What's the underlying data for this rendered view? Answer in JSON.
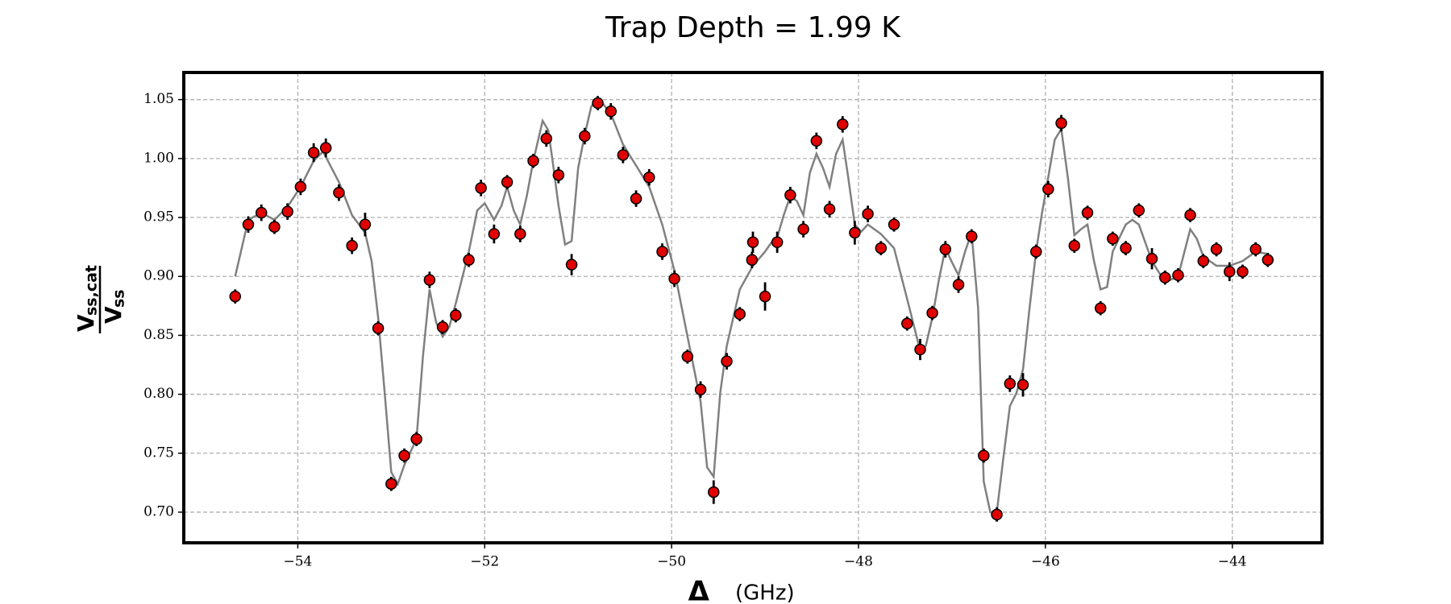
{
  "chart_data": {
    "type": "scatter",
    "title": "Trap Depth = 1.99 K",
    "xlabel": {
      "symbol": "Δ",
      "unit": "(GHz)"
    },
    "ylabel": {
      "numerator": {
        "base": "V",
        "sub": "ss,cat"
      },
      "denominator": {
        "base": "V",
        "sub": "ss"
      }
    },
    "xlim": [
      -55.22,
      -43.04
    ],
    "ylim": [
      0.674,
      1.073
    ],
    "xticks": [
      {
        "value": -54,
        "label": "−54"
      },
      {
        "value": -52,
        "label": "−52"
      },
      {
        "value": -50,
        "label": "−50"
      },
      {
        "value": -48,
        "label": "−48"
      },
      {
        "value": -46,
        "label": "−46"
      },
      {
        "value": -44,
        "label": "−44"
      }
    ],
    "yticks": [
      {
        "value": 0.7,
        "label": "0.70"
      },
      0.75,
      {
        "value": 0.8,
        "label": "0.80"
      },
      0.85,
      {
        "value": 0.9,
        "label": "0.90"
      },
      0.95,
      {
        "value": 1.0,
        "label": "1.00"
      },
      1.05
    ],
    "grid": true,
    "series": [
      {
        "type": "line",
        "color": "#808080",
        "x": [
          -54.67,
          -54.53,
          -54.39,
          -54.25,
          -54.11,
          -53.97,
          -53.83,
          -53.73,
          -53.56,
          -53.42,
          -53.28,
          -53.21,
          -53.14,
          -53.07,
          -53.0,
          -52.93,
          -52.86,
          -52.73,
          -52.66,
          -52.59,
          -52.52,
          -52.45,
          -52.38,
          -52.31,
          -52.17,
          -52.08,
          -52.0,
          -51.9,
          -51.82,
          -51.76,
          -51.69,
          -51.62,
          -51.55,
          -51.48,
          -51.38,
          -51.32,
          -51.27,
          -51.21,
          -51.14,
          -51.07,
          -51.0,
          -50.93,
          -50.86,
          -50.79,
          -50.65,
          -50.52,
          -50.38,
          -50.24,
          -50.1,
          -49.97,
          -49.83,
          -49.69,
          -49.62,
          -49.55,
          -49.48,
          -49.41,
          -49.27,
          -49.13,
          -49.0,
          -48.93,
          -48.87,
          -48.8,
          -48.73,
          -48.66,
          -48.59,
          -48.52,
          -48.45,
          -48.38,
          -48.31,
          -48.24,
          -48.17,
          -48.11,
          -48.04,
          -47.97,
          -47.9,
          -47.76,
          -47.62,
          -47.48,
          -47.34,
          -47.28,
          -47.21,
          -47.14,
          -47.07,
          -47.0,
          -46.93,
          -46.86,
          -46.79,
          -46.72,
          -46.66,
          -46.59,
          -46.52,
          -46.45,
          -46.38,
          -46.31,
          -46.24,
          -46.17,
          -46.1,
          -46.04,
          -45.97,
          -45.9,
          -45.83,
          -45.76,
          -45.69,
          -45.62,
          -45.55,
          -45.48,
          -45.41,
          -45.34,
          -45.28,
          -45.14,
          -45.07,
          -45.0,
          -44.86,
          -44.72,
          -44.58,
          -44.45,
          -44.38,
          -44.31,
          -44.17,
          -44.03,
          -43.89,
          -43.75,
          -43.62
        ],
        "values": [
          0.9,
          0.948,
          0.954,
          0.948,
          0.959,
          0.976,
          0.998,
          1.006,
          0.98,
          0.952,
          0.937,
          0.913,
          0.865,
          0.801,
          0.734,
          0.724,
          0.74,
          0.762,
          0.833,
          0.889,
          0.861,
          0.849,
          0.857,
          0.877,
          0.921,
          0.956,
          0.962,
          0.948,
          0.96,
          0.976,
          0.956,
          0.944,
          0.968,
          0.998,
          1.032,
          1.024,
          0.996,
          0.96,
          0.927,
          0.93,
          0.992,
          1.02,
          1.044,
          1.052,
          1.038,
          1.012,
          0.994,
          0.976,
          0.944,
          0.905,
          0.849,
          0.794,
          0.738,
          0.73,
          0.801,
          0.841,
          0.889,
          0.909,
          0.921,
          0.929,
          0.933,
          0.952,
          0.968,
          0.964,
          0.952,
          0.988,
          1.004,
          0.992,
          0.976,
          1.004,
          1.016,
          0.984,
          0.944,
          0.938,
          0.944,
          0.936,
          0.924,
          0.881,
          0.837,
          0.841,
          0.865,
          0.897,
          0.924,
          0.912,
          0.901,
          0.921,
          0.937,
          0.873,
          0.726,
          0.7,
          0.7,
          0.746,
          0.79,
          0.801,
          0.821,
          0.873,
          0.921,
          0.952,
          0.984,
          1.016,
          1.025,
          0.984,
          0.935,
          0.94,
          0.944,
          0.913,
          0.889,
          0.891,
          0.921,
          0.944,
          0.948,
          0.944,
          0.913,
          0.895,
          0.9,
          0.94,
          0.932,
          0.917,
          0.909,
          0.909,
          0.913,
          0.921,
          0.919
        ]
      },
      {
        "type": "scatter",
        "color": "#e00000",
        "x": [
          -54.67,
          -54.53,
          -54.39,
          -54.25,
          -54.11,
          -53.97,
          -53.83,
          -53.7,
          -53.56,
          -53.42,
          -53.28,
          -53.14,
          -53.0,
          -52.86,
          -52.73,
          -52.59,
          -52.45,
          -52.31,
          -52.17,
          -52.04,
          -51.9,
          -51.76,
          -51.62,
          -51.48,
          -51.34,
          -51.21,
          -51.07,
          -50.93,
          -50.79,
          -50.65,
          -50.52,
          -50.38,
          -50.24,
          -50.1,
          -49.97,
          -49.83,
          -49.69,
          -49.55,
          -49.41,
          -49.27,
          -49.14,
          -49.13,
          -49.0,
          -48.87,
          -48.73,
          -48.59,
          -48.45,
          -48.31,
          -48.17,
          -48.04,
          -47.9,
          -47.76,
          -47.62,
          -47.48,
          -47.34,
          -47.21,
          -47.07,
          -46.93,
          -46.79,
          -46.66,
          -46.52,
          -46.38,
          -46.24,
          -46.1,
          -45.97,
          -45.83,
          -45.69,
          -45.55,
          -45.41,
          -45.28,
          -45.14,
          -45.0,
          -44.86,
          -44.72,
          -44.58,
          -44.45,
          -44.31,
          -44.17,
          -44.03,
          -43.89,
          -43.75,
          -43.62
        ],
        "values": [
          0.883,
          0.944,
          0.954,
          0.942,
          0.955,
          0.976,
          1.005,
          1.009,
          0.971,
          0.926,
          0.944,
          0.856,
          0.724,
          0.748,
          0.762,
          0.897,
          0.857,
          0.867,
          0.914,
          0.975,
          0.936,
          0.98,
          0.936,
          0.998,
          1.017,
          0.986,
          0.91,
          1.019,
          1.047,
          1.04,
          1.003,
          0.966,
          0.984,
          0.921,
          0.898,
          0.832,
          0.804,
          0.717,
          0.828,
          0.868,
          0.914,
          0.929,
          0.883,
          0.929,
          0.969,
          0.94,
          1.015,
          0.957,
          1.029,
          0.937,
          0.953,
          0.924,
          0.944,
          0.86,
          0.838,
          0.869,
          0.923,
          0.893,
          0.934,
          0.748,
          0.698,
          0.809,
          0.808,
          0.921,
          0.974,
          1.03,
          0.926,
          0.954,
          0.873,
          0.932,
          0.924,
          0.956,
          0.915,
          0.899,
          0.901,
          0.952,
          0.913,
          0.923,
          0.904,
          0.904,
          0.923,
          0.914
        ],
        "errors": [
          0.006,
          0.007,
          0.007,
          0.006,
          0.007,
          0.007,
          0.008,
          0.008,
          0.007,
          0.007,
          0.01,
          0.006,
          0.006,
          0.006,
          0.006,
          0.007,
          0.006,
          0.006,
          0.006,
          0.007,
          0.008,
          0.006,
          0.007,
          0.006,
          0.007,
          0.007,
          0.009,
          0.007,
          0.006,
          0.007,
          0.007,
          0.007,
          0.007,
          0.007,
          0.007,
          0.006,
          0.007,
          0.01,
          0.007,
          0.006,
          0.007,
          0.009,
          0.012,
          0.009,
          0.007,
          0.007,
          0.007,
          0.007,
          0.007,
          0.01,
          0.007,
          0.006,
          0.006,
          0.006,
          0.009,
          0.006,
          0.007,
          0.007,
          0.006,
          0.006,
          0.006,
          0.007,
          0.01,
          0.006,
          0.007,
          0.007,
          0.006,
          0.006,
          0.006,
          0.006,
          0.006,
          0.006,
          0.009,
          0.006,
          0.006,
          0.006,
          0.006,
          0.006,
          0.008,
          0.006,
          0.006,
          0.006
        ]
      }
    ]
  }
}
